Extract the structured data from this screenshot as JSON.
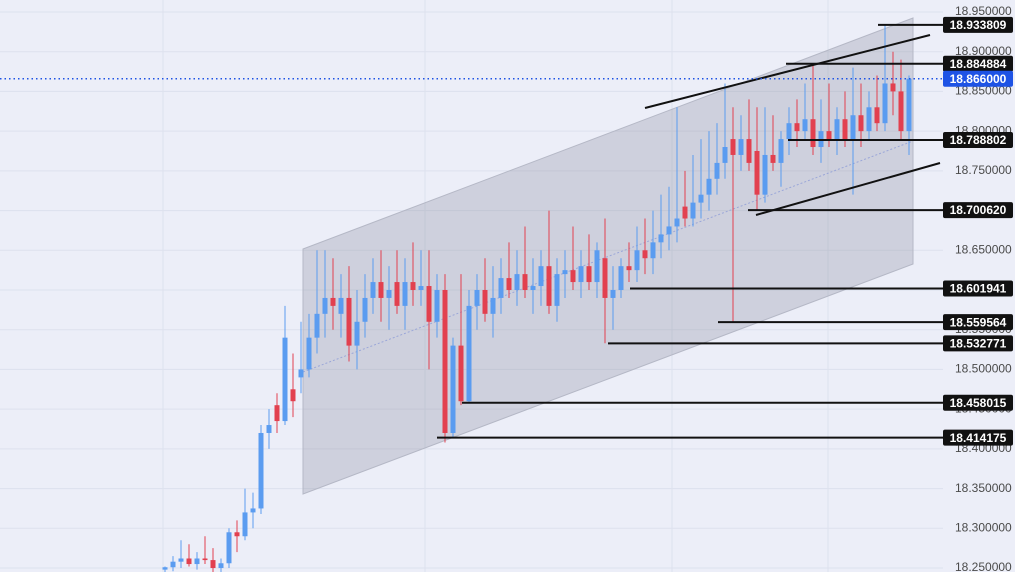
{
  "chart_data": {
    "type": "candlestick",
    "categories": [
      null,
      null,
      null,
      null,
      null,
      null,
      null,
      null,
      null,
      null,
      null,
      null,
      null,
      null,
      null,
      null,
      null,
      null,
      null,
      null,
      null,
      null,
      null,
      null,
      null,
      null,
      null,
      null,
      null,
      null,
      null,
      null,
      null,
      null,
      null,
      null,
      null,
      null,
      null,
      null,
      null,
      null,
      null,
      null,
      null,
      null,
      null,
      null,
      null,
      null,
      null,
      null,
      null,
      null,
      null,
      null,
      null,
      null,
      null,
      null,
      null,
      null,
      null,
      null,
      null,
      null,
      null,
      null,
      null,
      null,
      null,
      null,
      null,
      null,
      null,
      null,
      null,
      null,
      null,
      null,
      null,
      null,
      null,
      null,
      null,
      null,
      null,
      null,
      null,
      null,
      null,
      null,
      null,
      null
    ],
    "open": [
      18.248,
      18.251,
      18.258,
      18.262,
      18.255,
      18.262,
      18.26,
      18.25,
      18.256,
      18.295,
      18.29,
      18.32,
      18.325,
      18.42,
      18.455,
      18.435,
      18.475,
      18.49,
      18.5,
      18.54,
      18.57,
      18.59,
      18.57,
      18.59,
      18.53,
      18.56,
      18.59,
      18.61,
      18.59,
      18.61,
      18.58,
      18.61,
      18.6,
      18.605,
      18.56,
      18.6,
      18.42,
      18.53,
      18.46,
      18.58,
      18.6,
      18.57,
      18.59,
      18.615,
      18.6,
      18.62,
      18.6,
      18.605,
      18.63,
      18.58,
      18.62,
      18.625,
      18.61,
      18.63,
      18.61,
      18.64,
      18.59,
      18.6,
      18.63,
      18.625,
      18.65,
      18.64,
      18.66,
      18.67,
      18.68,
      18.705,
      18.69,
      18.71,
      18.72,
      18.74,
      18.76,
      18.79,
      18.77,
      18.79,
      18.775,
      18.72,
      18.77,
      18.76,
      18.79,
      18.81,
      18.8,
      18.815,
      18.78,
      18.8,
      18.79,
      18.815,
      18.79,
      18.82,
      18.8,
      18.83,
      18.81,
      18.86,
      18.85,
      18.8
    ],
    "high": [
      18.252,
      18.265,
      18.285,
      18.28,
      18.27,
      18.29,
      18.275,
      18.262,
      18.3,
      18.31,
      18.35,
      18.345,
      18.43,
      18.45,
      18.47,
      18.58,
      18.52,
      18.56,
      18.57,
      18.65,
      18.65,
      18.64,
      18.62,
      18.63,
      18.6,
      18.62,
      18.64,
      18.65,
      18.63,
      18.65,
      18.64,
      18.66,
      18.65,
      18.65,
      18.62,
      18.62,
      18.54,
      18.62,
      18.6,
      18.62,
      18.64,
      18.63,
      18.64,
      18.66,
      18.65,
      18.68,
      18.64,
      18.65,
      18.7,
      18.64,
      18.65,
      18.68,
      18.65,
      18.67,
      18.66,
      18.69,
      18.63,
      18.64,
      18.66,
      18.68,
      18.69,
      18.7,
      18.72,
      18.73,
      18.83,
      18.75,
      18.77,
      18.79,
      18.8,
      18.81,
      18.86,
      18.83,
      18.82,
      18.84,
      18.83,
      18.83,
      18.82,
      18.8,
      18.83,
      18.84,
      18.86,
      18.885,
      18.84,
      18.86,
      18.83,
      18.85,
      18.88,
      18.86,
      18.85,
      18.87,
      18.934,
      18.9,
      18.89,
      18.87
    ],
    "low": [
      18.244,
      18.246,
      18.25,
      18.252,
      18.248,
      18.255,
      18.245,
      18.244,
      18.25,
      18.27,
      18.285,
      18.3,
      18.318,
      18.4,
      18.42,
      18.43,
      18.44,
      18.47,
      18.49,
      18.52,
      18.54,
      18.55,
      18.54,
      18.51,
      18.5,
      18.54,
      18.57,
      18.56,
      18.55,
      18.57,
      18.55,
      18.58,
      18.58,
      18.5,
      18.54,
      18.408,
      18.414,
      18.455,
      18.458,
      18.55,
      18.56,
      18.54,
      18.57,
      18.59,
      18.58,
      18.59,
      18.57,
      18.58,
      18.57,
      18.56,
      18.59,
      18.6,
      18.59,
      18.6,
      18.59,
      18.533,
      18.55,
      18.59,
      18.61,
      18.61,
      18.62,
      18.62,
      18.64,
      18.65,
      18.66,
      18.68,
      18.68,
      18.69,
      18.7,
      18.72,
      18.74,
      18.56,
      18.75,
      18.75,
      18.7,
      18.71,
      18.75,
      18.73,
      18.77,
      18.78,
      18.79,
      18.77,
      18.76,
      18.78,
      18.77,
      18.78,
      18.72,
      18.78,
      18.79,
      18.8,
      18.8,
      18.82,
      18.788,
      18.77
    ],
    "close": [
      18.251,
      18.258,
      18.262,
      18.255,
      18.262,
      18.26,
      18.25,
      18.256,
      18.295,
      18.29,
      18.32,
      18.325,
      18.42,
      18.43,
      18.435,
      18.54,
      18.46,
      18.5,
      18.54,
      18.57,
      18.59,
      18.58,
      18.59,
      18.53,
      18.56,
      18.59,
      18.61,
      18.59,
      18.6,
      18.58,
      18.61,
      18.6,
      18.605,
      18.56,
      18.6,
      18.42,
      18.53,
      18.46,
      18.58,
      18.6,
      18.57,
      18.59,
      18.615,
      18.6,
      18.62,
      18.6,
      18.605,
      18.63,
      18.58,
      18.62,
      18.625,
      18.61,
      18.63,
      18.61,
      18.65,
      18.59,
      18.6,
      18.63,
      18.625,
      18.65,
      18.64,
      18.66,
      18.67,
      18.68,
      18.69,
      18.69,
      18.71,
      18.72,
      18.74,
      18.76,
      18.78,
      18.77,
      18.79,
      18.76,
      18.72,
      18.77,
      18.76,
      18.79,
      18.81,
      18.8,
      18.815,
      18.78,
      18.8,
      18.79,
      18.815,
      18.79,
      18.82,
      18.8,
      18.83,
      18.81,
      18.86,
      18.85,
      18.8,
      18.866
    ],
    "up_color": "#5b9cf0",
    "down_color": "#e2404f",
    "ylim": [
      18.245,
      18.955
    ],
    "yticks": [
      {
        "value": 18.95,
        "label": "18.950000"
      },
      {
        "value": 18.9,
        "label": "18.900000"
      },
      {
        "value": 18.85,
        "label": "18.850000"
      },
      {
        "value": 18.8,
        "label": "18.800000"
      },
      {
        "value": 18.75,
        "label": "18.750000"
      },
      {
        "value": 18.7,
        "label": "18.700000"
      },
      {
        "value": 18.65,
        "label": "18.650000"
      },
      {
        "value": 18.6,
        "label": "18.600000"
      },
      {
        "value": 18.55,
        "label": "18.550000"
      },
      {
        "value": 18.5,
        "label": "18.500000"
      },
      {
        "value": 18.45,
        "label": "18.450000"
      },
      {
        "value": 18.4,
        "label": "18.400000"
      },
      {
        "value": 18.35,
        "label": "18.350000"
      },
      {
        "value": 18.3,
        "label": "18.300000"
      },
      {
        "value": 18.25,
        "label": "18.250000"
      }
    ],
    "grid": true,
    "current_price": {
      "value": 18.866,
      "label": "18.866000",
      "color": "#1e53e5"
    },
    "levels": [
      18.933809,
      18.884884,
      18.788802,
      {
        "value": 18.70062,
        "label": "18.700620"
      },
      18.601941,
      18.559564,
      18.532771,
      18.458015,
      18.414175
    ]
  }
}
